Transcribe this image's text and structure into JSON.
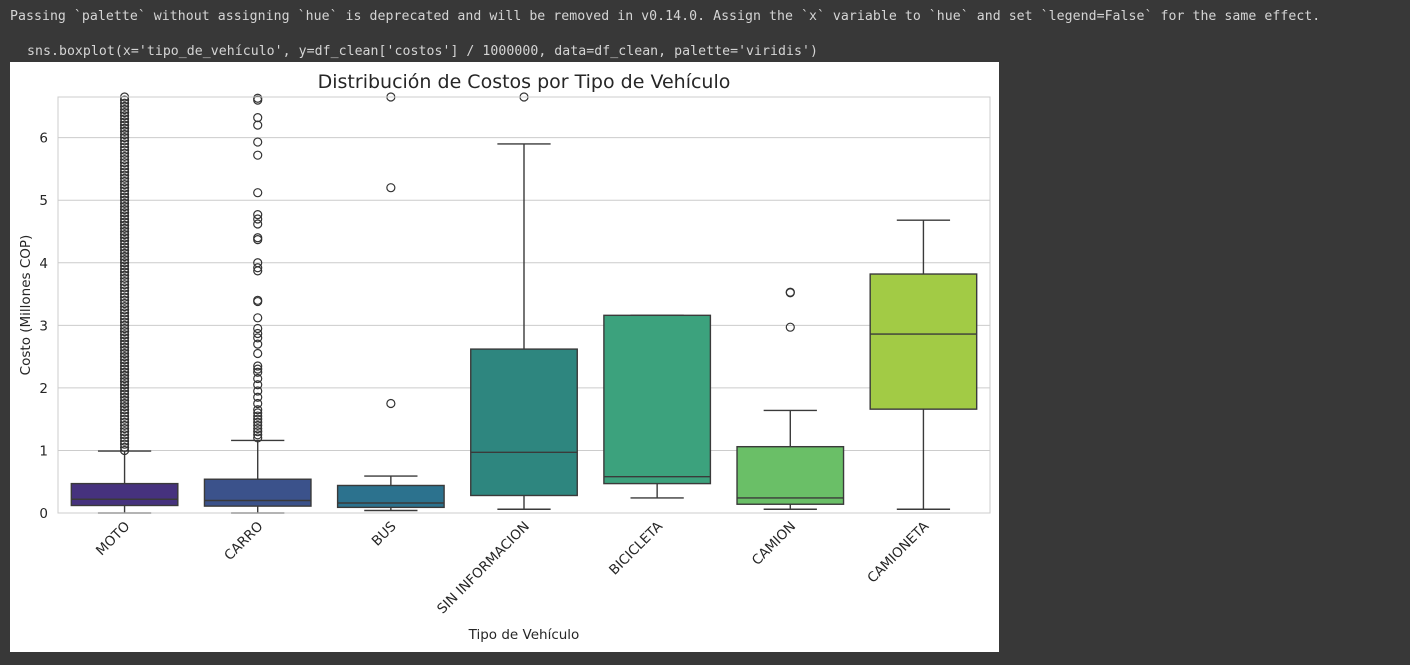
{
  "console": {
    "warning": "Passing `palette` without assigning `hue` is deprecated and will be removed in v0.14.0. Assign the `x` variable to `hue` and set `legend=False` for the same effect.",
    "code": "sns.boxplot(x='tipo_de_vehículo', y=df_clean['costos'] / 1000000, data=df_clean, palette='viridis')"
  },
  "chart_data": {
    "type": "boxplot",
    "title": "Distribución de Costos por Tipo de Vehículo",
    "xlabel": "Tipo de Vehículo",
    "ylabel": "Costo (Millones COP)",
    "ylim": [
      0,
      6.65
    ],
    "yticks": [
      0,
      1,
      2,
      3,
      4,
      5,
      6
    ],
    "grid": true,
    "x_tick_rotation": 45,
    "categories": [
      "MOTO",
      "CARRO",
      "BUS",
      "SIN INFORMACION",
      "BICICLETA",
      "CAMION",
      "CAMIONETA"
    ],
    "boxes": [
      {
        "name": "MOTO",
        "color": "#46327e",
        "whisker_low": 0.0,
        "q1": 0.12,
        "median": 0.22,
        "q3": 0.47,
        "whisker_high": 0.99,
        "outliers": [
          1.0,
          1.05,
          1.1,
          1.15,
          1.2,
          1.25,
          1.3,
          1.35,
          1.4,
          1.45,
          1.5,
          1.55,
          1.6,
          1.65,
          1.7,
          1.75,
          1.8,
          1.85,
          1.9,
          1.95,
          2.0,
          2.05,
          2.1,
          2.15,
          2.2,
          2.25,
          2.3,
          2.35,
          2.4,
          2.45,
          2.5,
          2.55,
          2.6,
          2.65,
          2.7,
          2.75,
          2.8,
          2.85,
          2.9,
          2.95,
          3.0,
          3.05,
          3.1,
          3.15,
          3.2,
          3.25,
          3.3,
          3.35,
          3.4,
          3.45,
          3.5,
          3.55,
          3.6,
          3.65,
          3.7,
          3.75,
          3.8,
          3.85,
          3.9,
          3.95,
          4.0,
          4.05,
          4.1,
          4.15,
          4.2,
          4.25,
          4.3,
          4.35,
          4.4,
          4.45,
          4.5,
          4.55,
          4.6,
          4.65,
          4.7,
          4.75,
          4.8,
          4.85,
          4.9,
          4.95,
          5.0,
          5.05,
          5.1,
          5.15,
          5.2,
          5.25,
          5.3,
          5.35,
          5.4,
          5.45,
          5.5,
          5.55,
          5.6,
          5.65,
          5.7,
          5.75,
          5.8,
          5.85,
          5.9,
          5.95,
          6.0,
          6.05,
          6.1,
          6.15,
          6.2,
          6.25,
          6.3,
          6.35,
          6.4,
          6.45,
          6.5,
          6.55,
          6.6,
          6.65
        ]
      },
      {
        "name": "CARRO",
        "color": "#3b528b",
        "whisker_low": 0.0,
        "q1": 0.11,
        "median": 0.2,
        "q3": 0.54,
        "whisker_high": 1.16,
        "outliers": [
          1.2,
          1.25,
          1.3,
          1.35,
          1.4,
          1.45,
          1.5,
          1.55,
          1.6,
          1.65,
          1.75,
          1.85,
          1.95,
          2.05,
          2.15,
          2.25,
          2.3,
          2.35,
          2.55,
          2.7,
          2.8,
          2.87,
          2.95,
          3.12,
          3.38,
          3.4,
          3.87,
          3.92,
          4.0,
          4.37,
          4.4,
          4.62,
          4.7,
          4.77,
          5.12,
          5.72,
          5.93,
          6.2,
          6.32,
          6.6,
          6.63
        ]
      },
      {
        "name": "BUS",
        "color": "#2c728e",
        "whisker_low": 0.04,
        "q1": 0.09,
        "median": 0.16,
        "q3": 0.44,
        "whisker_high": 0.59,
        "outliers": [
          1.75,
          5.2,
          6.65
        ]
      },
      {
        "name": "SIN INFORMACION",
        "color": "#2e867f",
        "whisker_low": 0.06,
        "q1": 0.28,
        "median": 0.97,
        "q3": 2.62,
        "whisker_high": 5.9,
        "outliers": [
          6.65
        ]
      },
      {
        "name": "BICICLETA",
        "color": "#3ca27d",
        "whisker_low": 0.24,
        "q1": 0.47,
        "median": 0.58,
        "q3": 3.16,
        "whisker_high": 3.16,
        "outliers": []
      },
      {
        "name": "CAMION",
        "color": "#6abf67",
        "whisker_low": 0.06,
        "q1": 0.14,
        "median": 0.24,
        "q3": 1.06,
        "whisker_high": 1.64,
        "outliers": [
          2.97,
          3.52,
          3.53
        ]
      },
      {
        "name": "CAMIONETA",
        "color": "#a2cb45",
        "whisker_low": 0.06,
        "q1": 1.66,
        "median": 2.86,
        "q3": 3.82,
        "whisker_high": 4.68,
        "outliers": []
      }
    ]
  }
}
